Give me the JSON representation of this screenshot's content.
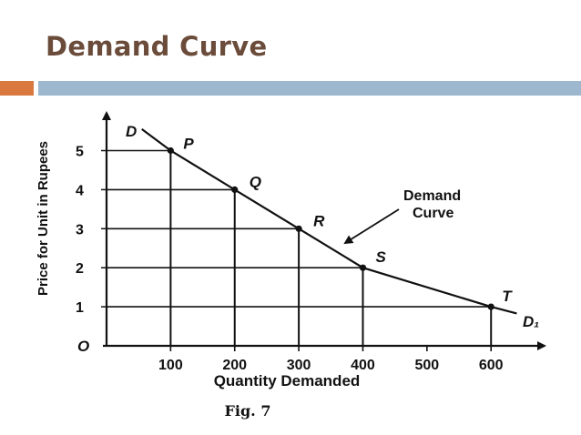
{
  "slide": {
    "title": "Demand Curve"
  },
  "chart_data": {
    "type": "line",
    "title": "",
    "xlabel": "Quantity Demanded",
    "ylabel": "Price for Unit in Rupees",
    "origin_label": "O",
    "x_ticks": [
      100,
      200,
      300,
      400,
      500,
      600
    ],
    "y_ticks": [
      1,
      2,
      3,
      4,
      5
    ],
    "xlim": [
      0,
      650
    ],
    "ylim": [
      0,
      6
    ],
    "grid": "drop lines to points",
    "series": [
      {
        "x": [
          100,
          200,
          300,
          400,
          600
        ],
        "y": [
          5,
          4,
          3,
          2,
          1
        ]
      }
    ],
    "points": [
      {
        "label": "P",
        "x": 100,
        "y": 5
      },
      {
        "label": "Q",
        "x": 200,
        "y": 4
      },
      {
        "label": "R",
        "x": 300,
        "y": 3
      },
      {
        "label": "S",
        "x": 400,
        "y": 2
      },
      {
        "label": "T",
        "x": 600,
        "y": 1
      }
    ],
    "curve_labels": {
      "start": "D",
      "end": "D₁"
    },
    "annotation": {
      "line1": "Demand",
      "line2": "Curve"
    },
    "caption": "Fig. 7"
  }
}
